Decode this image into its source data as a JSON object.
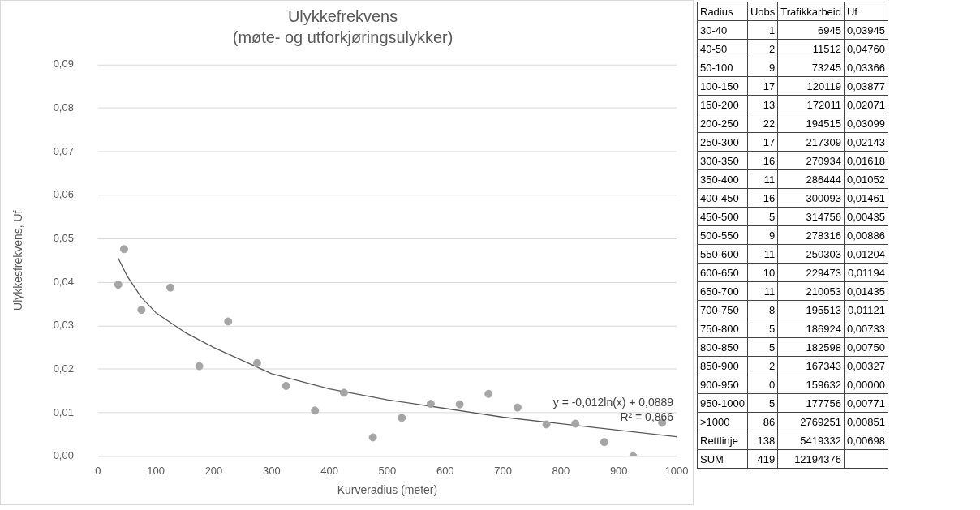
{
  "chart_data": [
    {
      "type": "scatter",
      "title": "Ulykkefrekvens",
      "subtitle": "(møte- og utforkjøringsulykker)",
      "xlabel": "Kurveradius (meter)",
      "ylabel": "Ulykkesfrekvens, Uf",
      "series": [
        {
          "type": "scatter",
          "color": "#a5a5a5",
          "x": [
            35,
            45,
            75,
            125,
            175,
            225,
            275,
            325,
            375,
            425,
            475,
            525,
            575,
            625,
            675,
            725,
            775,
            825,
            875,
            925,
            975
          ],
          "values": [
            0.03945,
            0.0476,
            0.03366,
            0.03877,
            0.02071,
            0.03099,
            0.02143,
            0.01618,
            0.01052,
            0.01461,
            0.00435,
            0.00886,
            0.01204,
            0.01194,
            0.01435,
            0.01121,
            0.00733,
            0.0075,
            0.00327,
            0.0,
            0.00771
          ]
        },
        {
          "type": "line",
          "marker": "none",
          "color": "#595959",
          "x": [
            35,
            50,
            75,
            100,
            150,
            200,
            300,
            400,
            500,
            600,
            700,
            800,
            900,
            1000
          ],
          "values": [
            0.0455,
            0.0415,
            0.0365,
            0.033,
            0.0285,
            0.025,
            0.019,
            0.0155,
            0.013,
            0.011,
            0.009,
            0.0075,
            0.006,
            0.0045
          ]
        }
      ],
      "xlim": [
        0,
        1000
      ],
      "xticks": [
        0,
        100,
        200,
        300,
        400,
        500,
        600,
        700,
        800,
        900,
        1000
      ],
      "ylim": [
        0,
        0.09
      ],
      "yticks": [
        {
          "value": 0,
          "label": "0,00"
        },
        {
          "value": 0.01,
          "label": "0,01"
        },
        {
          "value": 0.02,
          "label": "0,02"
        },
        {
          "value": 0.03,
          "label": "0,03"
        },
        {
          "value": 0.04,
          "label": "0,04"
        },
        {
          "value": 0.05,
          "label": "0,05"
        },
        {
          "value": 0.06,
          "label": "0,06"
        },
        {
          "value": 0.07,
          "label": "0,07"
        },
        {
          "value": 0.08,
          "label": "0,08"
        },
        {
          "value": 0.09,
          "label": "0,09"
        }
      ],
      "grid": "y",
      "legend": false,
      "marker": "circle",
      "annotations": [
        "y = -0,012ln(x) + 0,0889",
        "R² = 0,866"
      ]
    },
    {
      "type": "other",
      "categories": [
        "Radius",
        "Uobs",
        "Trafikkarbeid",
        "Uf"
      ],
      "cell_labels": [
        [
          "30-40",
          "1",
          "6945",
          "0,03945"
        ],
        [
          "40-50",
          "2",
          "11512",
          "0,04760"
        ],
        [
          "50-100",
          "9",
          "73245",
          "0,03366"
        ],
        [
          "100-150",
          "17",
          "120119",
          "0,03877"
        ],
        [
          "150-200",
          "13",
          "172011",
          "0,02071"
        ],
        [
          "200-250",
          "22",
          "194515",
          "0,03099"
        ],
        [
          "250-300",
          "17",
          "217309",
          "0,02143"
        ],
        [
          "300-350",
          "16",
          "270934",
          "0,01618"
        ],
        [
          "350-400",
          "11",
          "286444",
          "0,01052"
        ],
        [
          "400-450",
          "16",
          "300093",
          "0,01461"
        ],
        [
          "450-500",
          "5",
          "314756",
          "0,00435"
        ],
        [
          "500-550",
          "9",
          "278316",
          "0,00886"
        ],
        [
          "550-600",
          "11",
          "250303",
          "0,01204"
        ],
        [
          "600-650",
          "10",
          "229473",
          "0,01194"
        ],
        [
          "650-700",
          "11",
          "210053",
          "0,01435"
        ],
        [
          "700-750",
          "8",
          "195513",
          "0,01121"
        ],
        [
          "750-800",
          "5",
          "186924",
          "0,00733"
        ],
        [
          "800-850",
          "5",
          "182598",
          "0,00750"
        ],
        [
          "850-900",
          "2",
          "167343",
          "0,00327"
        ],
        [
          "900-950",
          "0",
          "159632",
          "0,00000"
        ],
        [
          "950-1000",
          "5",
          "177756",
          "0,00771"
        ],
        [
          ">1000",
          "86",
          "2769251",
          "0,00851"
        ],
        [
          "Rettlinje",
          "138",
          "5419332",
          "0,00698"
        ],
        [
          "SUM",
          "419",
          "12194376",
          null
        ]
      ]
    }
  ]
}
